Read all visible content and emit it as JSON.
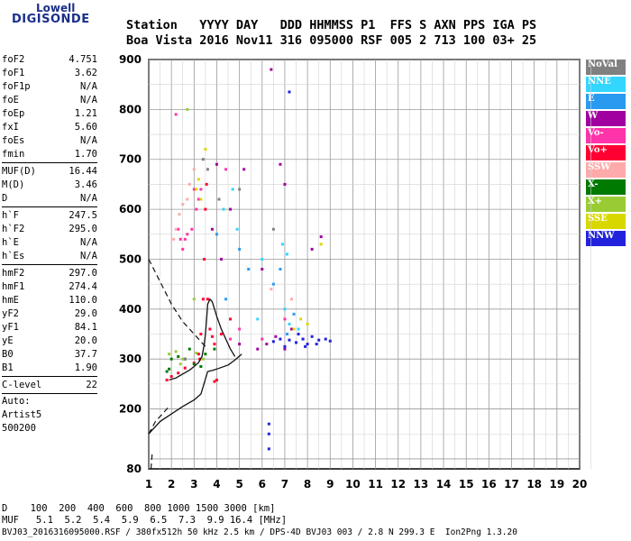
{
  "logo": {
    "line1": "Lowell",
    "line2": "DIGISONDE"
  },
  "header": {
    "line1": "Station   YYYY DAY   DDD HHMMSS P1  FFS S AXN PPS IGA PS",
    "line2": "Boa Vista 2016 Nov11 316 095000 RSF 005 2 713 100 03+ 25"
  },
  "params": [
    [
      {
        "label": "foF2",
        "value": "4.751"
      },
      {
        "label": "foF1",
        "value": "3.62"
      },
      {
        "label": "foF1p",
        "value": "N/A"
      },
      {
        "label": "foE",
        "value": "N/A"
      },
      {
        "label": "foEp",
        "value": "1.21"
      },
      {
        "label": "fxI",
        "value": "5.60"
      },
      {
        "label": "foEs",
        "value": "N/A"
      },
      {
        "label": "fmin",
        "value": "1.70"
      }
    ],
    [
      {
        "label": "MUF(D)",
        "value": "16.44"
      },
      {
        "label": "M(D)",
        "value": "3.46"
      },
      {
        "label": "D",
        "value": "N/A"
      }
    ],
    [
      {
        "label": "h`F",
        "value": "247.5"
      },
      {
        "label": "h`F2",
        "value": "295.0"
      },
      {
        "label": "h`E",
        "value": "N/A"
      },
      {
        "label": "h`Es",
        "value": "N/A"
      }
    ],
    [
      {
        "label": "hmF2",
        "value": "297.0"
      },
      {
        "label": "hmF1",
        "value": "274.4"
      },
      {
        "label": "hmE",
        "value": "110.0"
      },
      {
        "label": "yF2",
        "value": "29.0"
      },
      {
        "label": "yF1",
        "value": "84.1"
      },
      {
        "label": "yE",
        "value": "20.0"
      },
      {
        "label": "B0",
        "value": "37.7"
      },
      {
        "label": "B1",
        "value": "1.90"
      }
    ],
    [
      {
        "label": "C-level",
        "value": "22"
      }
    ]
  ],
  "auto": {
    "line1": "Auto:",
    "line2": "Artist5",
    "line3": "500200"
  },
  "legend": [
    {
      "label": "NoVal",
      "color": "#808080"
    },
    {
      "label": "NNE",
      "color": "#33d6ff"
    },
    {
      "label": "E",
      "color": "#2a9af0"
    },
    {
      "label": "W",
      "color": "#a000a0"
    },
    {
      "label": "Vo-",
      "color": "#ff33aa"
    },
    {
      "label": "Vo+",
      "color": "#ff0033"
    },
    {
      "label": "SSW",
      "color": "#ffaaaa"
    },
    {
      "label": "X-",
      "color": "#007a00"
    },
    {
      "label": "X+",
      "color": "#99cc33"
    },
    {
      "label": "SSE",
      "color": "#d8d800"
    },
    {
      "label": "NNW",
      "color": "#2222dd"
    }
  ],
  "footer": {
    "line1": "D    100  200  400  600  800 1000 1500 3000 [km]",
    "line2": "MUF   5.1  5.2  5.4  5.9  6.5  7.3  9.9 16.4 [MHz]",
    "line3": "BVJ03_2016316095000.RSF / 380fx512h 50 kHz 2.5 km / DPS-4D BVJ03 003 / 2.8 N 299.3 E  Ion2Png 1.3.20"
  },
  "chart_data": {
    "type": "scatter",
    "xlim": [
      1,
      20
    ],
    "ylim": [
      80,
      900
    ],
    "x_ticks": [
      1,
      2,
      3,
      4,
      5,
      6,
      7,
      8,
      9,
      10,
      11,
      12,
      13,
      14,
      15,
      16,
      17,
      18,
      19,
      20
    ],
    "y_ticks": [
      80,
      200,
      300,
      400,
      500,
      600,
      700,
      800,
      900
    ],
    "grid": true,
    "legend_position": "right",
    "trace_curve": [
      [
        1.9,
        258
      ],
      [
        2.2,
        262
      ],
      [
        2.5,
        270
      ],
      [
        2.8,
        278
      ],
      [
        3.0,
        285
      ],
      [
        3.2,
        293
      ],
      [
        3.35,
        305
      ],
      [
        3.45,
        330
      ],
      [
        3.5,
        350
      ],
      [
        3.55,
        380
      ],
      [
        3.6,
        410
      ],
      [
        3.7,
        420
      ],
      [
        3.8,
        415
      ],
      [
        3.9,
        400
      ],
      [
        4.0,
        385
      ],
      [
        4.2,
        360
      ],
      [
        4.4,
        340
      ],
      [
        4.6,
        320
      ],
      [
        4.8,
        305
      ]
    ],
    "profile_curve": [
      [
        1.0,
        150
      ],
      [
        1.5,
        175
      ],
      [
        2.0,
        190
      ],
      [
        2.5,
        205
      ],
      [
        3.0,
        218
      ],
      [
        3.3,
        230
      ],
      [
        3.5,
        260
      ],
      [
        3.6,
        275
      ],
      [
        3.8,
        277
      ],
      [
        4.0,
        280
      ],
      [
        4.5,
        288
      ],
      [
        4.8,
        298
      ],
      [
        5.1,
        310
      ]
    ],
    "dashed_curves": [
      [
        [
          1.0,
          500
        ],
        [
          1.5,
          455
        ],
        [
          2.0,
          410
        ],
        [
          2.5,
          375
        ],
        [
          3.0,
          350
        ],
        [
          3.3,
          335
        ],
        [
          3.6,
          320
        ]
      ],
      [
        [
          1.0,
          150
        ],
        [
          1.3,
          175
        ],
        [
          1.6,
          190
        ],
        [
          1.9,
          205
        ]
      ],
      [
        [
          1.1,
          80
        ],
        [
          1.15,
          110
        ]
      ]
    ],
    "echo_clusters": [
      {
        "source": "Vo+",
        "points": [
          [
            1.8,
            258
          ],
          [
            2.0,
            265
          ],
          [
            2.3,
            272
          ],
          [
            2.6,
            282
          ],
          [
            3.0,
            292
          ],
          [
            3.2,
            310
          ],
          [
            3.3,
            350
          ],
          [
            3.4,
            420
          ],
          [
            3.45,
            500
          ],
          [
            3.5,
            600
          ],
          [
            3.55,
            650
          ],
          [
            3.6,
            420
          ],
          [
            3.7,
            360
          ],
          [
            3.8,
            345
          ],
          [
            3.9,
            330
          ],
          [
            4.2,
            350
          ],
          [
            4.6,
            380
          ],
          [
            3.9,
            255
          ],
          [
            4.0,
            258
          ],
          [
            3.25,
            300
          ]
        ]
      },
      {
        "source": "Vo-",
        "points": [
          [
            2.5,
            520
          ],
          [
            2.6,
            540
          ],
          [
            2.9,
            560
          ],
          [
            3.1,
            600
          ],
          [
            3.3,
            640
          ],
          [
            2.3,
            560
          ],
          [
            2.2,
            790
          ],
          [
            2.4,
            540
          ],
          [
            3.0,
            640
          ],
          [
            4.4,
            680
          ],
          [
            4.6,
            340
          ],
          [
            5.0,
            360
          ],
          [
            6.0,
            340
          ],
          [
            7.0,
            380
          ],
          [
            2.7,
            550
          ],
          [
            3.2,
            620
          ]
        ]
      },
      {
        "source": "W",
        "points": [
          [
            4.0,
            690
          ],
          [
            4.6,
            600
          ],
          [
            5.2,
            680
          ],
          [
            6.2,
            330
          ],
          [
            6.6,
            345
          ],
          [
            7.0,
            320
          ],
          [
            7.3,
            360
          ],
          [
            6.4,
            880
          ],
          [
            7.0,
            650
          ],
          [
            5.8,
            320
          ],
          [
            7.8,
            340
          ],
          [
            3.8,
            560
          ],
          [
            4.2,
            500
          ],
          [
            6.0,
            480
          ],
          [
            6.8,
            690
          ],
          [
            8.2,
            520
          ],
          [
            8.6,
            545
          ],
          [
            5.0,
            330
          ]
        ]
      },
      {
        "source": "NNW",
        "points": [
          [
            6.5,
            335
          ],
          [
            6.8,
            340
          ],
          [
            7.0,
            325
          ],
          [
            7.2,
            338
          ],
          [
            7.5,
            333
          ],
          [
            7.8,
            340
          ],
          [
            8.0,
            330
          ],
          [
            8.2,
            345
          ],
          [
            8.5,
            338
          ],
          [
            8.8,
            340
          ],
          [
            9.0,
            336
          ],
          [
            7.6,
            350
          ],
          [
            7.9,
            325
          ],
          [
            8.4,
            330
          ],
          [
            6.3,
            120
          ],
          [
            6.3,
            150
          ],
          [
            6.3,
            170
          ],
          [
            7.2,
            835
          ]
        ]
      },
      {
        "source": "NNE",
        "points": [
          [
            4.3,
            600
          ],
          [
            4.7,
            640
          ],
          [
            4.9,
            560
          ],
          [
            6.9,
            530
          ],
          [
            7.1,
            510
          ],
          [
            7.2,
            370
          ],
          [
            7.6,
            360
          ],
          [
            7.0,
            400
          ],
          [
            6.0,
            500
          ],
          [
            5.8,
            380
          ]
        ]
      },
      {
        "source": "E",
        "points": [
          [
            4.0,
            550
          ],
          [
            5.0,
            520
          ],
          [
            6.8,
            480
          ],
          [
            7.1,
            350
          ],
          [
            7.4,
            390
          ],
          [
            4.4,
            420
          ],
          [
            5.4,
            480
          ],
          [
            6.5,
            450
          ]
        ]
      },
      {
        "source": "X-",
        "points": [
          [
            1.9,
            280
          ],
          [
            2.0,
            300
          ],
          [
            2.3,
            305
          ],
          [
            2.6,
            300
          ],
          [
            3.0,
            290
          ],
          [
            3.3,
            285
          ],
          [
            2.8,
            320
          ],
          [
            1.8,
            275
          ],
          [
            3.5,
            310
          ],
          [
            3.9,
            320
          ]
        ]
      },
      {
        "source": "X+",
        "points": [
          [
            1.9,
            310
          ],
          [
            2.2,
            315
          ],
          [
            2.5,
            300
          ],
          [
            2.7,
            800
          ],
          [
            3.1,
            312
          ],
          [
            3.4,
            300
          ],
          [
            3.0,
            420
          ],
          [
            2.4,
            290
          ]
        ]
      },
      {
        "source": "SSE",
        "points": [
          [
            3.2,
            660
          ],
          [
            3.1,
            640
          ],
          [
            3.3,
            620
          ],
          [
            7.4,
            360
          ],
          [
            8.0,
            370
          ],
          [
            8.6,
            530
          ],
          [
            7.7,
            380
          ],
          [
            3.5,
            720
          ]
        ]
      },
      {
        "source": "SSW",
        "points": [
          [
            2.2,
            560
          ],
          [
            2.35,
            590
          ],
          [
            2.5,
            610
          ],
          [
            2.8,
            650
          ],
          [
            3.0,
            680
          ],
          [
            6.4,
            440
          ],
          [
            7.3,
            420
          ],
          [
            2.1,
            540
          ],
          [
            2.7,
            620
          ]
        ]
      },
      {
        "source": "NoVal",
        "points": [
          [
            3.4,
            700
          ],
          [
            3.6,
            680
          ],
          [
            5.0,
            640
          ],
          [
            6.5,
            560
          ],
          [
            4.1,
            620
          ],
          [
            2.6,
            300
          ]
        ]
      }
    ]
  }
}
